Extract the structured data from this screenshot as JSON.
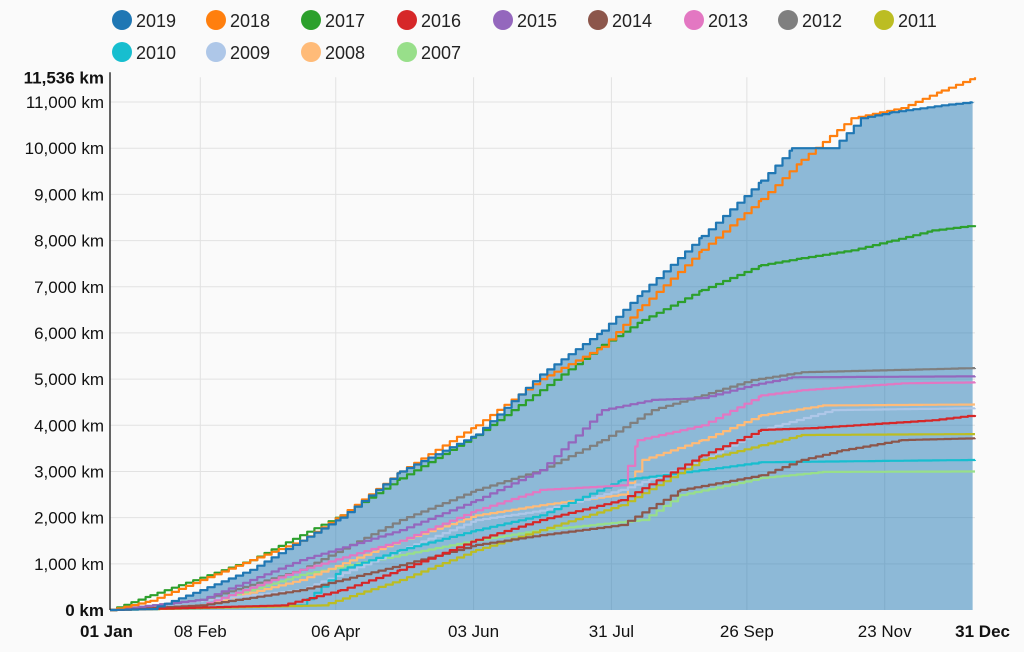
{
  "chart_data": {
    "type": "line",
    "title": "",
    "xlabel": "",
    "ylabel": "",
    "ylim": [
      0,
      11536
    ],
    "xlim": [
      "01-01",
      "12-31"
    ],
    "grid": true,
    "legend_position": "top",
    "y_ticks": [
      "0 km",
      "1,000 km",
      "2,000 km",
      "3,000 km",
      "4,000 km",
      "5,000 km",
      "6,000 km",
      "7,000 km",
      "8,000 km",
      "9,000 km",
      "10,000 km",
      "11,000 km"
    ],
    "y_max_label": "11,536 km",
    "x_ticks": [
      {
        "date": "01-01",
        "label": "01 Jan"
      },
      {
        "date": "02-08",
        "label": "08 Feb"
      },
      {
        "date": "04-06",
        "label": "06 Apr"
      },
      {
        "date": "06-03",
        "label": "03 Jun"
      },
      {
        "date": "07-31",
        "label": "31 Jul"
      },
      {
        "date": "09-26",
        "label": "26 Sep"
      },
      {
        "date": "11-23",
        "label": "23 Nov"
      },
      {
        "date": "12-31",
        "label": "31 Dec"
      }
    ],
    "area_fill_series": "2019",
    "series": [
      {
        "name": "2019",
        "color": "#1f77b4",
        "points": [
          [
            "01-01",
            0
          ],
          [
            "01-18",
            20
          ],
          [
            "02-08",
            430
          ],
          [
            "03-01",
            870
          ],
          [
            "03-22",
            1500
          ],
          [
            "04-08",
            2000
          ],
          [
            "05-03",
            3000
          ],
          [
            "06-04",
            3800
          ],
          [
            "07-01",
            5100
          ],
          [
            "07-27",
            6050
          ],
          [
            "08-13",
            6900
          ],
          [
            "09-07",
            8100
          ],
          [
            "10-02",
            9300
          ],
          [
            "10-15",
            10000
          ],
          [
            "11-01",
            10000
          ],
          [
            "11-13",
            10650
          ],
          [
            "11-26",
            10780
          ],
          [
            "12-17",
            10930
          ],
          [
            "12-30",
            11000
          ]
        ]
      },
      {
        "name": "2018",
        "color": "#ff7f0e",
        "points": [
          [
            "01-01",
            0
          ],
          [
            "01-18",
            200
          ],
          [
            "02-08",
            650
          ],
          [
            "03-01",
            1080
          ],
          [
            "03-22",
            1500
          ],
          [
            "04-08",
            2050
          ],
          [
            "05-03",
            3000
          ],
          [
            "06-04",
            4000
          ],
          [
            "07-01",
            5000
          ],
          [
            "07-27",
            5700
          ],
          [
            "08-13",
            6600
          ],
          [
            "09-07",
            7800
          ],
          [
            "10-02",
            8900
          ],
          [
            "10-19",
            9750
          ],
          [
            "11-09",
            10650
          ],
          [
            "11-30",
            10870
          ],
          [
            "12-17",
            11250
          ],
          [
            "12-31",
            11536
          ]
        ]
      },
      {
        "name": "2017",
        "color": "#2ca02c",
        "points": [
          [
            "01-01",
            0
          ],
          [
            "01-18",
            320
          ],
          [
            "02-08",
            700
          ],
          [
            "03-01",
            1080
          ],
          [
            "03-22",
            1620
          ],
          [
            "04-08",
            2050
          ],
          [
            "05-03",
            2850
          ],
          [
            "06-04",
            3790
          ],
          [
            "07-01",
            4760
          ],
          [
            "07-27",
            5740
          ],
          [
            "08-13",
            6280
          ],
          [
            "09-07",
            6930
          ],
          [
            "10-02",
            7470
          ],
          [
            "10-19",
            7620
          ],
          [
            "11-09",
            7790
          ],
          [
            "11-26",
            8000
          ],
          [
            "12-13",
            8220
          ],
          [
            "12-31",
            8330
          ]
        ]
      },
      {
        "name": "2016",
        "color": "#d62728",
        "points": [
          [
            "01-01",
            0
          ],
          [
            "03-14",
            100
          ],
          [
            "04-08",
            430
          ],
          [
            "05-03",
            870
          ],
          [
            "06-04",
            1520
          ],
          [
            "07-01",
            1950
          ],
          [
            "08-04",
            2380
          ],
          [
            "09-07",
            3350
          ],
          [
            "10-02",
            3900
          ],
          [
            "10-23",
            3940
          ],
          [
            "12-13",
            4110
          ],
          [
            "12-31",
            4220
          ]
        ]
      },
      {
        "name": "2015",
        "color": "#9467bd",
        "points": [
          [
            "01-01",
            0
          ],
          [
            "02-08",
            220
          ],
          [
            "03-22",
            1080
          ],
          [
            "05-03",
            1730
          ],
          [
            "06-04",
            2380
          ],
          [
            "07-01",
            3030
          ],
          [
            "07-27",
            4330
          ],
          [
            "08-17",
            4550
          ],
          [
            "09-07",
            4590
          ],
          [
            "09-28",
            4870
          ],
          [
            "10-15",
            5040
          ],
          [
            "12-31",
            5060
          ]
        ]
      },
      {
        "name": "2014",
        "color": "#8c564b",
        "points": [
          [
            "01-01",
            0
          ],
          [
            "02-08",
            100
          ],
          [
            "03-22",
            430
          ],
          [
            "05-03",
            970
          ],
          [
            "06-04",
            1410
          ],
          [
            "07-01",
            1620
          ],
          [
            "08-04",
            1840
          ],
          [
            "08-29",
            2600
          ],
          [
            "10-02",
            2920
          ],
          [
            "10-19",
            3250
          ],
          [
            "11-05",
            3460
          ],
          [
            "11-30",
            3680
          ],
          [
            "12-31",
            3720
          ]
        ]
      },
      {
        "name": "2013",
        "color": "#e377c2",
        "points": [
          [
            "01-01",
            0
          ],
          [
            "02-08",
            100
          ],
          [
            "03-22",
            870
          ],
          [
            "05-03",
            1500
          ],
          [
            "06-04",
            2160
          ],
          [
            "07-01",
            2600
          ],
          [
            "08-04",
            2700
          ],
          [
            "08-11",
            3680
          ],
          [
            "09-07",
            4000
          ],
          [
            "10-02",
            4650
          ],
          [
            "10-19",
            4760
          ],
          [
            "11-30",
            4910
          ],
          [
            "12-31",
            4930
          ]
        ]
      },
      {
        "name": "2012",
        "color": "#7f7f7f",
        "points": [
          [
            "01-01",
            0
          ],
          [
            "02-08",
            220
          ],
          [
            "03-22",
            870
          ],
          [
            "05-03",
            1950
          ],
          [
            "06-04",
            2600
          ],
          [
            "07-01",
            3030
          ],
          [
            "07-27",
            3680
          ],
          [
            "08-17",
            4330
          ],
          [
            "09-07",
            4650
          ],
          [
            "09-28",
            4980
          ],
          [
            "10-19",
            5150
          ],
          [
            "11-30",
            5200
          ],
          [
            "12-31",
            5240
          ]
        ]
      },
      {
        "name": "2011",
        "color": "#bcbd22",
        "points": [
          [
            "01-01",
            0
          ],
          [
            "03-31",
            100
          ],
          [
            "05-03",
            650
          ],
          [
            "06-04",
            1300
          ],
          [
            "07-01",
            1730
          ],
          [
            "08-04",
            2270
          ],
          [
            "09-07",
            3250
          ],
          [
            "10-02",
            3570
          ],
          [
            "10-19",
            3790
          ],
          [
            "12-31",
            3810
          ]
        ]
      },
      {
        "name": "2010",
        "color": "#17becf",
        "points": [
          [
            "01-01",
            0
          ],
          [
            "03-22",
            100
          ],
          [
            "04-08",
            870
          ],
          [
            "05-03",
            1300
          ],
          [
            "06-04",
            1730
          ],
          [
            "07-01",
            2050
          ],
          [
            "08-04",
            2810
          ],
          [
            "09-07",
            3030
          ],
          [
            "10-02",
            3200
          ],
          [
            "12-31",
            3250
          ]
        ]
      },
      {
        "name": "2009",
        "color": "#aec7e8",
        "points": [
          [
            "01-01",
            0
          ],
          [
            "03-22",
            430
          ],
          [
            "05-03",
            1300
          ],
          [
            "06-04",
            1950
          ],
          [
            "07-01",
            2150
          ],
          [
            "08-04",
            2600
          ],
          [
            "09-07",
            3250
          ],
          [
            "10-02",
            3900
          ],
          [
            "11-01",
            4330
          ],
          [
            "12-31",
            4370
          ]
        ]
      },
      {
        "name": "2008",
        "color": "#ffbb78",
        "points": [
          [
            "01-01",
            0
          ],
          [
            "02-08",
            100
          ],
          [
            "03-22",
            650
          ],
          [
            "05-03",
            1500
          ],
          [
            "06-04",
            2050
          ],
          [
            "07-01",
            2270
          ],
          [
            "08-04",
            2500
          ],
          [
            "08-13",
            3250
          ],
          [
            "09-07",
            3680
          ],
          [
            "10-02",
            4220
          ],
          [
            "10-28",
            4430
          ],
          [
            "12-31",
            4450
          ]
        ]
      },
      {
        "name": "2007",
        "color": "#98df8a",
        "points": [
          [
            "01-01",
            0
          ],
          [
            "02-08",
            100
          ],
          [
            "03-22",
            760
          ],
          [
            "05-03",
            1190
          ],
          [
            "06-04",
            1510
          ],
          [
            "07-01",
            1730
          ],
          [
            "08-13",
            1950
          ],
          [
            "08-29",
            2490
          ],
          [
            "10-02",
            2860
          ],
          [
            "10-28",
            2990
          ],
          [
            "12-31",
            3000
          ]
        ]
      }
    ]
  }
}
